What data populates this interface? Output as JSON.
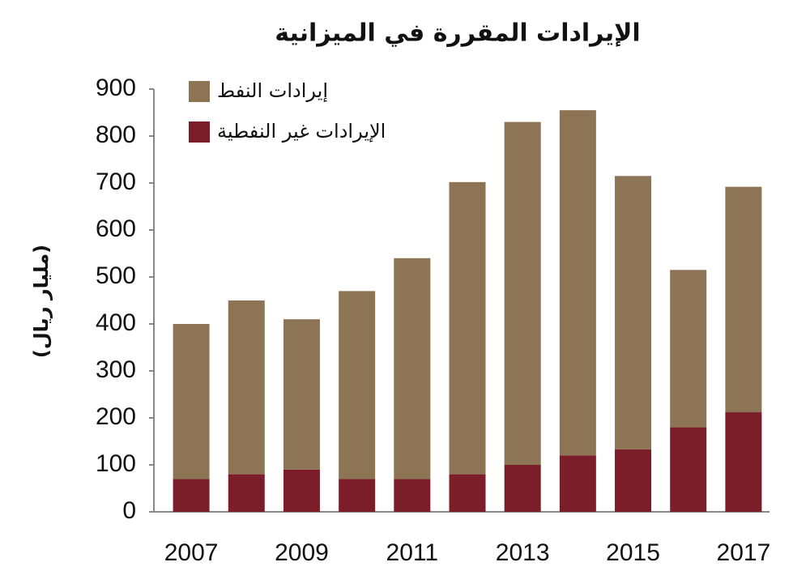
{
  "chart_data": {
    "type": "stacked-bar",
    "title": "الإيرادات المقررة في الميزانية",
    "y_label": "(مليار ريال)",
    "categories": [
      "2007",
      null,
      "2009",
      null,
      "2011",
      null,
      "2013",
      null,
      "2015",
      null,
      "2017"
    ],
    "series": [
      {
        "name": "إيرادات النفط",
        "color": "#8c7455",
        "values": [
          330,
          370,
          320,
          400,
          470,
          622,
          730,
          735,
          582,
          335,
          480
        ]
      },
      {
        "name": "الإيرادات غير النفطية",
        "color": "#7b1e2a",
        "values": [
          70,
          80,
          90,
          70,
          70,
          80,
          100,
          120,
          133,
          180,
          212
        ]
      }
    ],
    "ylim": [
      0,
      900
    ],
    "yticks": [
      0,
      100,
      200,
      300,
      400,
      500,
      600,
      700,
      800,
      900
    ],
    "grid": false
  }
}
